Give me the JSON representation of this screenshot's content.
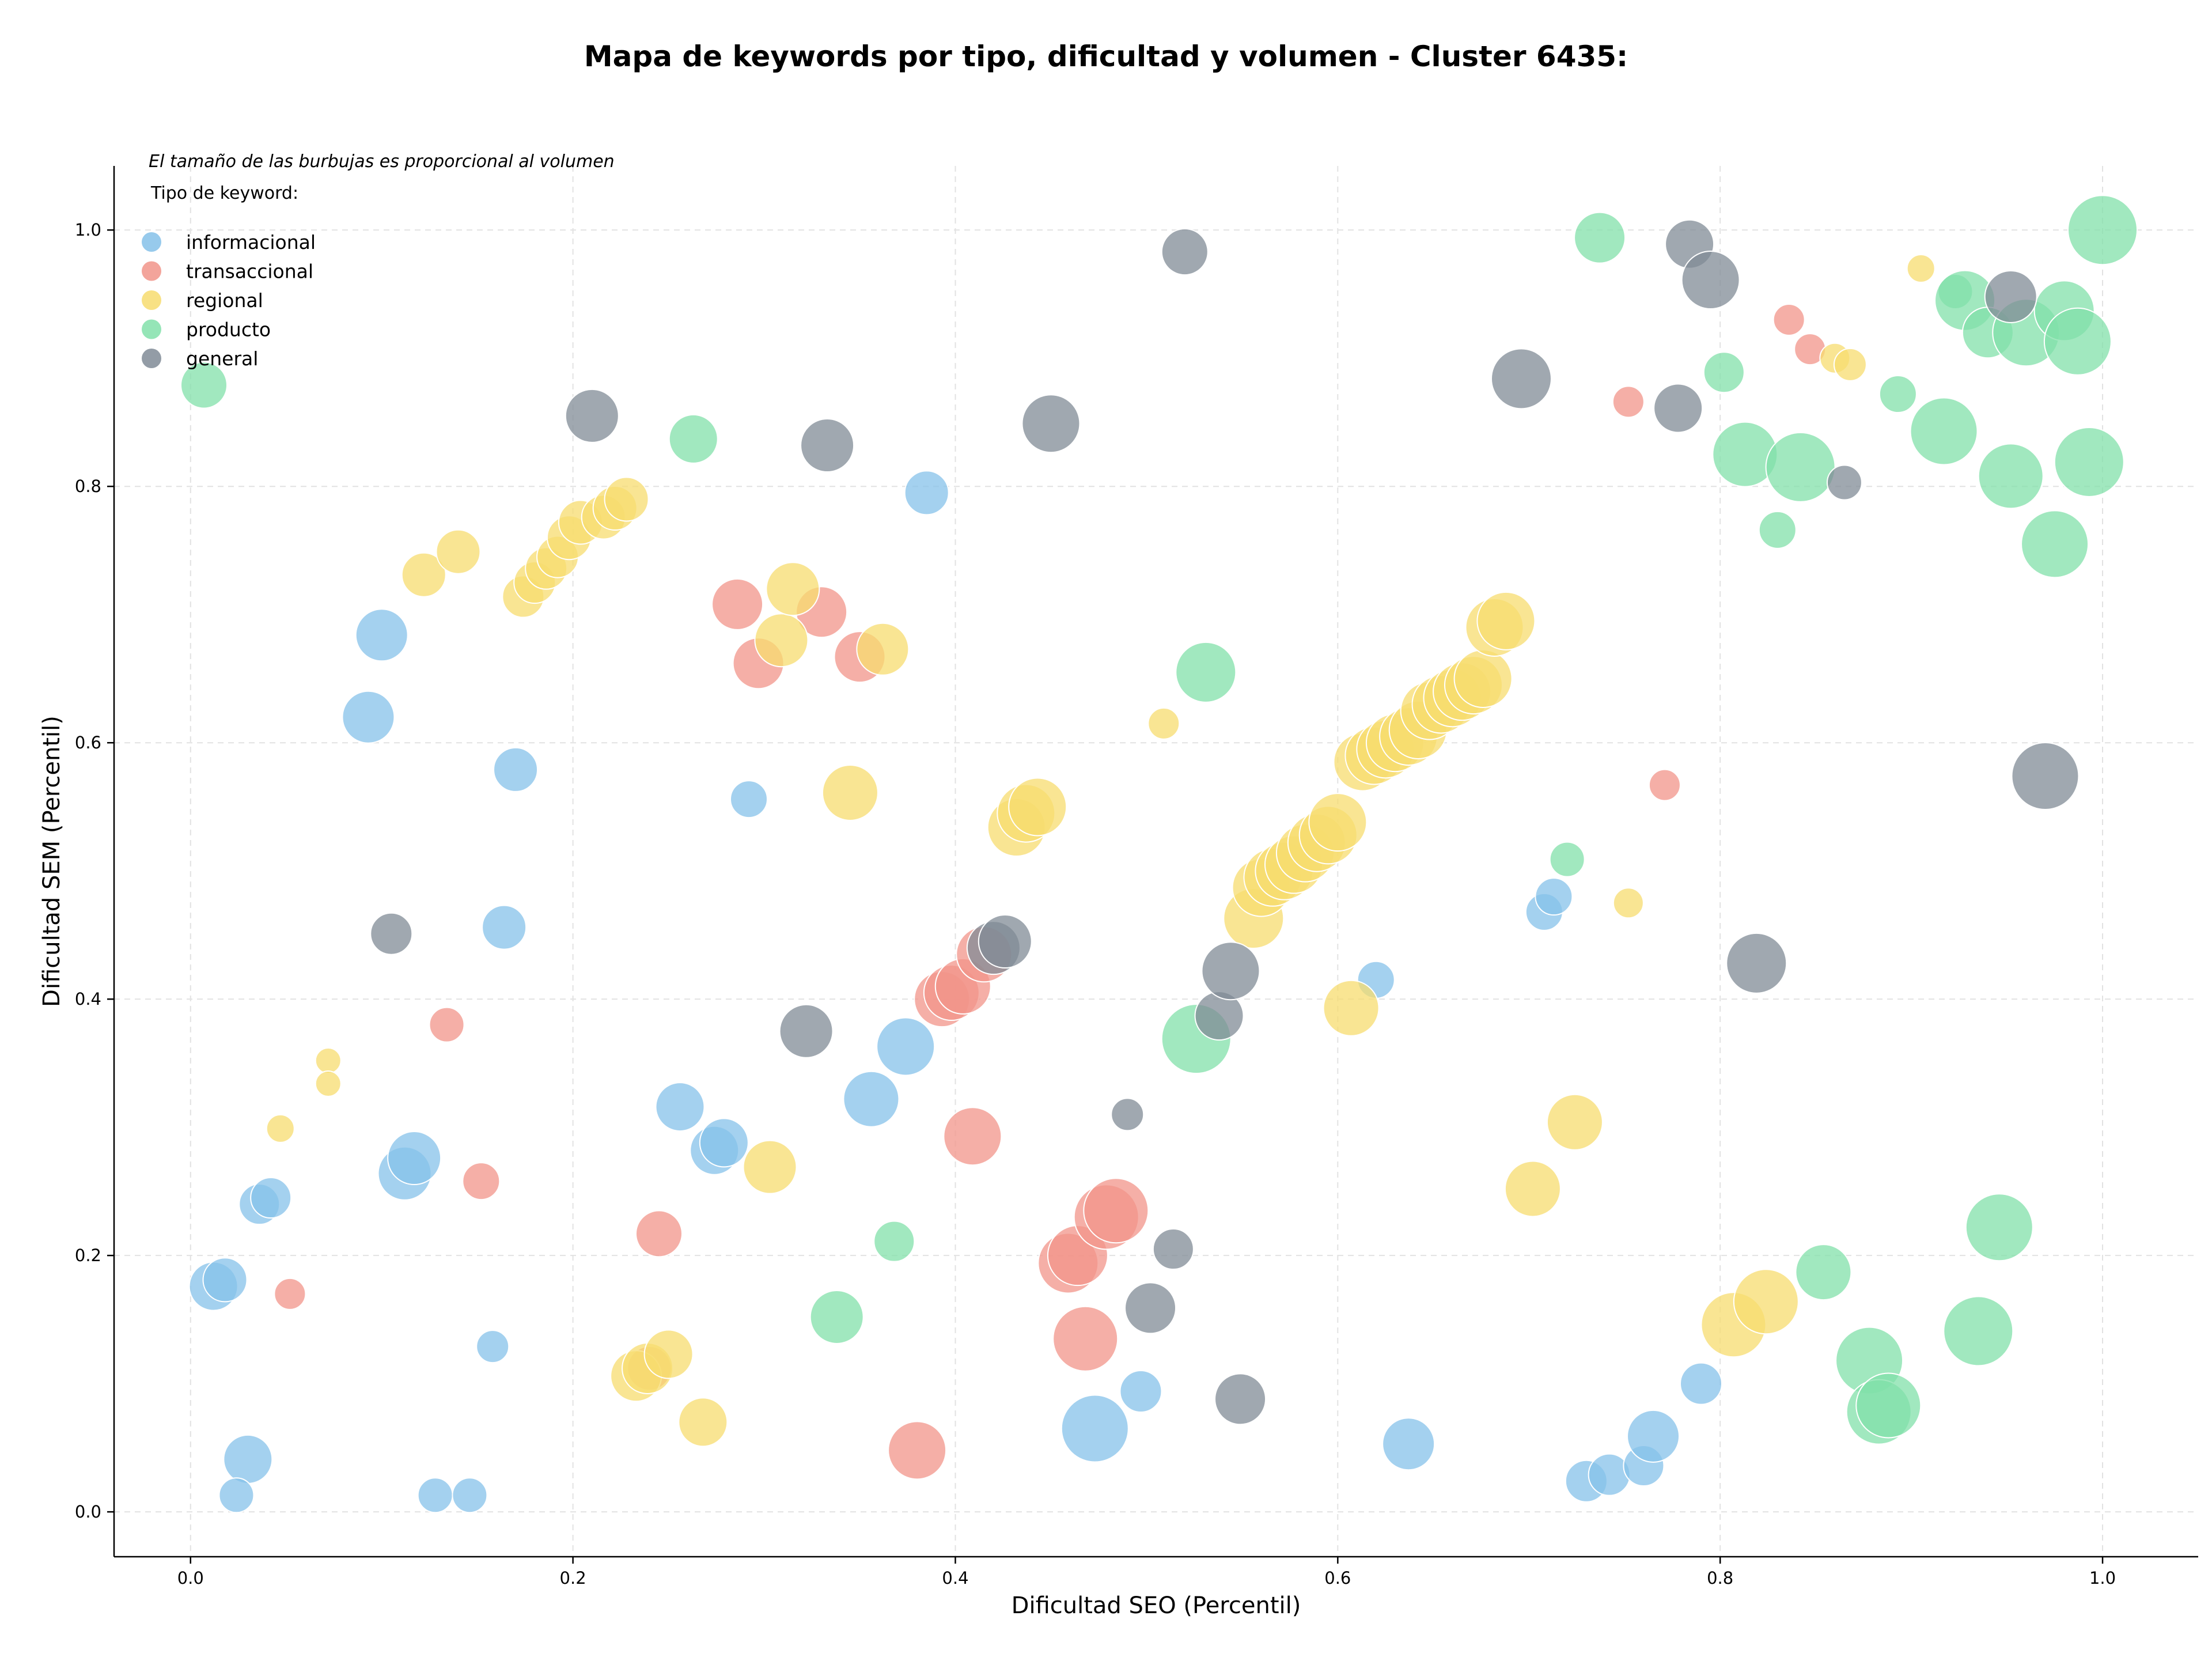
{
  "chart_data": {
    "type": "scatter",
    "title": "Mapa de keywords por tipo, dificultad y volumen - Cluster 6435:",
    "xlabel": "Dificultad SEO (Percentil)",
    "ylabel": "Dificultad SEM (Percentil)",
    "xlim": [
      -0.04,
      1.05
    ],
    "ylim": [
      -0.035,
      1.05
    ],
    "xticks": [
      0.0,
      0.2,
      0.4,
      0.6,
      0.8,
      1.0
    ],
    "yticks": [
      0.0,
      0.2,
      0.4,
      0.6,
      0.8,
      1.0
    ],
    "xtick_labels": [
      "0.0",
      "0.2",
      "0.4",
      "0.6",
      "0.8",
      "1.0"
    ],
    "ytick_labels": [
      "0.0",
      "0.2",
      "0.4",
      "0.6",
      "0.8",
      "1.0"
    ],
    "grid": true,
    "legend_position": "upper-left",
    "legend_title": "Tipo de keyword:",
    "note": "El tamaño de las burbujas es proporcional al volumen",
    "series": [
      {
        "name": "informacional",
        "color": "#85c1e9",
        "points": [
          [
            0.1,
            0.684,
            45
          ],
          [
            0.093,
            0.62,
            45
          ],
          [
            0.17,
            0.579,
            38
          ],
          [
            0.164,
            0.456,
            38
          ],
          [
            0.292,
            0.556,
            32
          ],
          [
            0.385,
            0.795,
            38
          ],
          [
            0.012,
            0.176,
            42
          ],
          [
            0.018,
            0.181,
            38
          ],
          [
            0.036,
            0.24,
            35
          ],
          [
            0.042,
            0.245,
            35
          ],
          [
            0.112,
            0.264,
            46
          ],
          [
            0.117,
            0.276,
            46
          ],
          [
            0.03,
            0.041,
            42
          ],
          [
            0.024,
            0.013,
            30
          ],
          [
            0.128,
            0.013,
            30
          ],
          [
            0.146,
            0.013,
            30
          ],
          [
            0.158,
            0.129,
            28
          ],
          [
            0.256,
            0.316,
            42
          ],
          [
            0.274,
            0.282,
            42
          ],
          [
            0.279,
            0.288,
            42
          ],
          [
            0.356,
            0.322,
            48
          ],
          [
            0.374,
            0.363,
            50
          ],
          [
            0.473,
            0.065,
            58
          ],
          [
            0.497,
            0.094,
            36
          ],
          [
            0.62,
            0.415,
            32
          ],
          [
            0.637,
            0.053,
            45
          ],
          [
            0.708,
            0.468,
            32
          ],
          [
            0.713,
            0.48,
            32
          ],
          [
            0.73,
            0.024,
            36
          ],
          [
            0.742,
            0.029,
            36
          ],
          [
            0.76,
            0.036,
            35
          ],
          [
            0.765,
            0.059,
            45
          ],
          [
            0.79,
            0.1,
            36
          ]
        ]
      },
      {
        "name": "transaccional",
        "color": "#f1948a",
        "points": [
          [
            0.134,
            0.38,
            30
          ],
          [
            0.152,
            0.258,
            32
          ],
          [
            0.052,
            0.17,
            27
          ],
          [
            0.245,
            0.217,
            40
          ],
          [
            0.24,
            0.112,
            38
          ],
          [
            0.286,
            0.708,
            44
          ],
          [
            0.297,
            0.662,
            44
          ],
          [
            0.33,
            0.702,
            44
          ],
          [
            0.35,
            0.667,
            44
          ],
          [
            0.38,
            0.048,
            50
          ],
          [
            0.393,
            0.4,
            48
          ],
          [
            0.398,
            0.405,
            48
          ],
          [
            0.404,
            0.41,
            48
          ],
          [
            0.409,
            0.293,
            50
          ],
          [
            0.415,
            0.435,
            48
          ],
          [
            0.459,
            0.194,
            52
          ],
          [
            0.464,
            0.2,
            52
          ],
          [
            0.468,
            0.135,
            56
          ],
          [
            0.479,
            0.23,
            56
          ],
          [
            0.484,
            0.235,
            56
          ],
          [
            0.752,
            0.866,
            27
          ],
          [
            0.771,
            0.567,
            27
          ],
          [
            0.836,
            0.93,
            27
          ],
          [
            0.847,
            0.907,
            27
          ]
        ]
      },
      {
        "name": "regional",
        "color": "#f7dc6f",
        "points": [
          [
            0.072,
            0.352,
            22
          ],
          [
            0.072,
            0.334,
            22
          ],
          [
            0.047,
            0.299,
            24
          ],
          [
            0.122,
            0.731,
            38
          ],
          [
            0.14,
            0.749,
            38
          ],
          [
            0.174,
            0.714,
            36
          ],
          [
            0.18,
            0.725,
            36
          ],
          [
            0.186,
            0.736,
            36
          ],
          [
            0.192,
            0.745,
            36
          ],
          [
            0.198,
            0.76,
            38
          ],
          [
            0.204,
            0.772,
            38
          ],
          [
            0.216,
            0.776,
            38
          ],
          [
            0.222,
            0.783,
            38
          ],
          [
            0.228,
            0.79,
            38
          ],
          [
            0.233,
            0.106,
            44
          ],
          [
            0.239,
            0.112,
            44
          ],
          [
            0.25,
            0.123,
            42
          ],
          [
            0.268,
            0.07,
            42
          ],
          [
            0.303,
            0.269,
            46
          ],
          [
            0.309,
            0.68,
            46
          ],
          [
            0.315,
            0.72,
            46
          ],
          [
            0.345,
            0.561,
            48
          ],
          [
            0.362,
            0.673,
            45
          ],
          [
            0.432,
            0.534,
            50
          ],
          [
            0.437,
            0.545,
            50
          ],
          [
            0.443,
            0.55,
            50
          ],
          [
            0.509,
            0.615,
            27
          ],
          [
            0.556,
            0.463,
            52
          ],
          [
            0.56,
            0.487,
            50
          ],
          [
            0.566,
            0.495,
            50
          ],
          [
            0.572,
            0.5,
            50
          ],
          [
            0.577,
            0.505,
            50
          ],
          [
            0.583,
            0.514,
            50
          ],
          [
            0.589,
            0.522,
            50
          ],
          [
            0.595,
            0.528,
            50
          ],
          [
            0.6,
            0.538,
            50
          ],
          [
            0.607,
            0.393,
            48
          ],
          [
            0.613,
            0.585,
            50
          ],
          [
            0.619,
            0.59,
            50
          ],
          [
            0.625,
            0.595,
            50
          ],
          [
            0.63,
            0.6,
            50
          ],
          [
            0.637,
            0.605,
            50
          ],
          [
            0.642,
            0.61,
            50
          ],
          [
            0.648,
            0.625,
            50
          ],
          [
            0.654,
            0.63,
            50
          ],
          [
            0.66,
            0.635,
            50
          ],
          [
            0.665,
            0.64,
            50
          ],
          [
            0.671,
            0.645,
            50
          ],
          [
            0.676,
            0.65,
            50
          ],
          [
            0.682,
            0.69,
            50
          ],
          [
            0.688,
            0.695,
            50
          ],
          [
            0.702,
            0.252,
            48
          ],
          [
            0.724,
            0.304,
            48
          ],
          [
            0.752,
            0.475,
            26
          ],
          [
            0.807,
            0.146,
            56
          ],
          [
            0.824,
            0.164,
            56
          ],
          [
            0.86,
            0.9,
            26
          ],
          [
            0.868,
            0.895,
            28
          ],
          [
            0.905,
            0.97,
            24
          ]
        ]
      },
      {
        "name": "producto",
        "color": "#82e0aa",
        "points": [
          [
            0.007,
            0.879,
            40
          ],
          [
            0.263,
            0.837,
            42
          ],
          [
            0.338,
            0.152,
            46
          ],
          [
            0.368,
            0.211,
            35
          ],
          [
            0.526,
            0.369,
            60
          ],
          [
            0.531,
            0.655,
            52
          ],
          [
            0.72,
            0.509,
            30
          ],
          [
            0.737,
            0.994,
            44
          ],
          [
            0.802,
            0.889,
            35
          ],
          [
            0.813,
            0.825,
            56
          ],
          [
            0.83,
            0.766,
            32
          ],
          [
            0.842,
            0.815,
            60
          ],
          [
            0.854,
            0.187,
            48
          ],
          [
            0.878,
            0.118,
            58
          ],
          [
            0.883,
            0.078,
            56
          ],
          [
            0.888,
            0.083,
            56
          ],
          [
            0.893,
            0.872,
            32
          ],
          [
            0.917,
            0.843,
            58
          ],
          [
            0.923,
            0.952,
            30
          ],
          [
            0.928,
            0.945,
            52
          ],
          [
            0.935,
            0.141,
            60
          ],
          [
            0.94,
            0.92,
            44
          ],
          [
            0.946,
            0.222,
            58
          ],
          [
            0.952,
            0.808,
            56
          ],
          [
            0.96,
            0.92,
            58
          ],
          [
            0.975,
            0.755,
            58
          ],
          [
            0.98,
            0.937,
            52
          ],
          [
            0.987,
            0.913,
            58
          ],
          [
            0.993,
            0.819,
            60
          ],
          [
            1.0,
            1.0,
            60
          ]
        ]
      },
      {
        "name": "general",
        "color": "#808b96",
        "points": [
          [
            0.105,
            0.451,
            36
          ],
          [
            0.21,
            0.855,
            46
          ],
          [
            0.322,
            0.375,
            46
          ],
          [
            0.333,
            0.832,
            46
          ],
          [
            0.42,
            0.44,
            46
          ],
          [
            0.426,
            0.445,
            46
          ],
          [
            0.45,
            0.849,
            50
          ],
          [
            0.49,
            0.31,
            28
          ],
          [
            0.502,
            0.159,
            44
          ],
          [
            0.514,
            0.205,
            35
          ],
          [
            0.52,
            0.983,
            40
          ],
          [
            0.538,
            0.387,
            42
          ],
          [
            0.544,
            0.422,
            50
          ],
          [
            0.549,
            0.088,
            44
          ],
          [
            0.696,
            0.884,
            52
          ],
          [
            0.778,
            0.861,
            42
          ],
          [
            0.784,
            0.989,
            42
          ],
          [
            0.795,
            0.961,
            50
          ],
          [
            0.819,
            0.428,
            52
          ],
          [
            0.865,
            0.803,
            30
          ],
          [
            0.952,
            0.948,
            45
          ],
          [
            0.97,
            0.574,
            58
          ]
        ]
      }
    ]
  }
}
